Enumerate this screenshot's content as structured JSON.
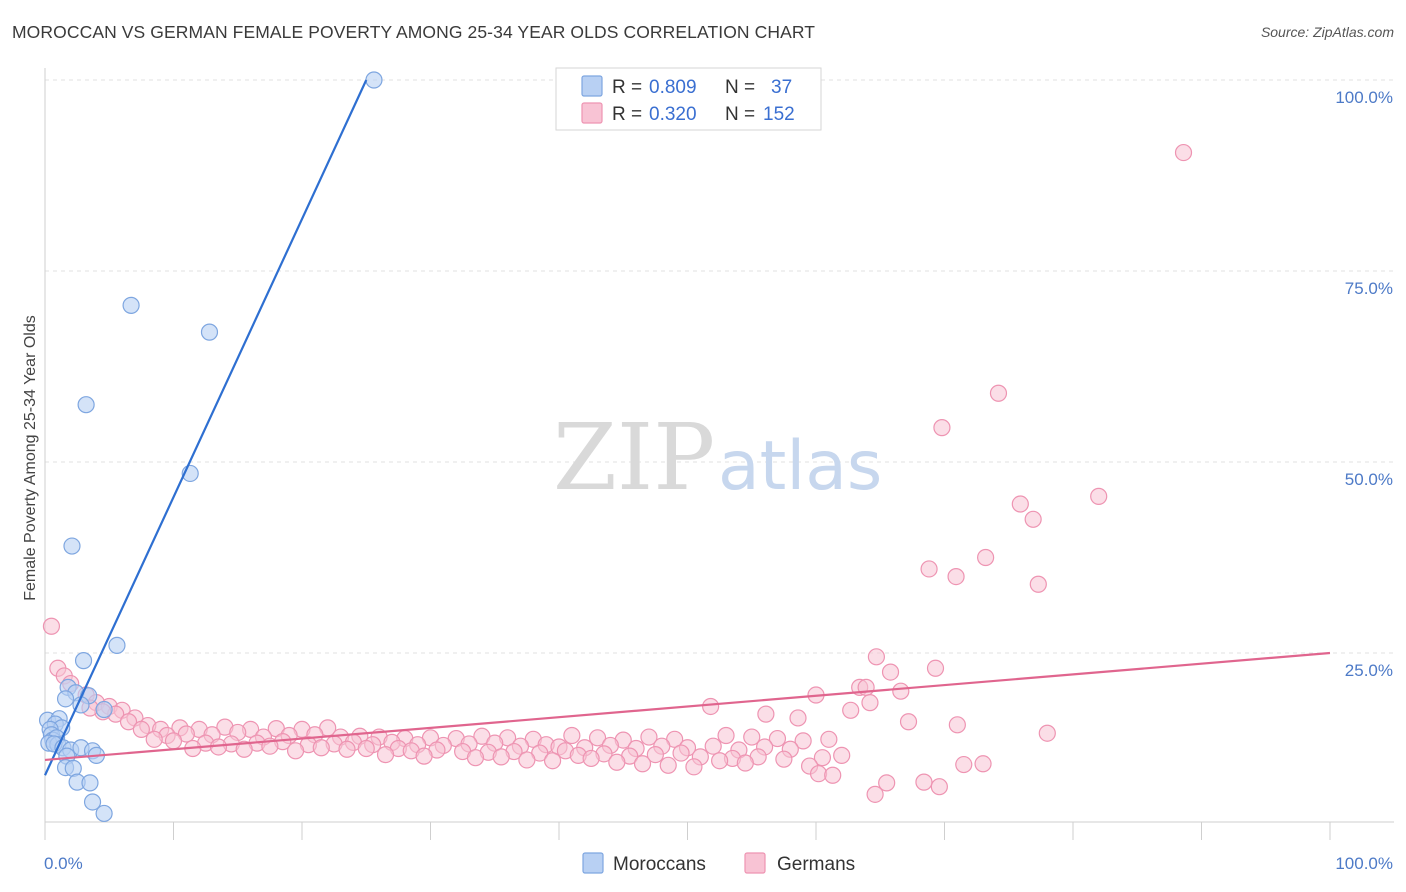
{
  "header": {
    "title": "MOROCCAN VS GERMAN FEMALE POVERTY AMONG 25-34 YEAR OLDS CORRELATION CHART",
    "source": "Source: ZipAtlas.com"
  },
  "watermark": {
    "part1": "ZIP",
    "part2": "atlas"
  },
  "legend": {
    "r_label": "R =",
    "n_label": "N =",
    "rows": [
      {
        "r": "0.809",
        "n": "37"
      },
      {
        "r": "0.320",
        "n": "152"
      }
    ]
  },
  "colors": {
    "blue_fill": "#b8d0f3",
    "blue_stroke": "#7ea6e0",
    "blue_line": "#2e6fd1",
    "pink_fill": "#f8c3d4",
    "pink_stroke": "#ee94b2",
    "pink_line": "#e0658e",
    "grid": "#e2e2e2",
    "axis_tick_text": "#4d7ac7"
  },
  "chart_data": {
    "type": "scatter",
    "title": "MOROCCAN VS GERMAN FEMALE POVERTY AMONG 25-34 YEAR OLDS CORRELATION CHART",
    "xlabel": "",
    "ylabel": "Female Poverty Among 25-34 Year Olds",
    "xlim": [
      0,
      100
    ],
    "ylim": [
      0,
      103
    ],
    "x_tick_labels": [
      "0.0%",
      "100.0%"
    ],
    "y_ticks": [
      25,
      50,
      75,
      100
    ],
    "y_tick_labels": [
      "25.0%",
      "50.0%",
      "75.0%",
      "100.0%"
    ],
    "grid": true,
    "legend_position": "bottom-center",
    "series": [
      {
        "name": "Moroccans",
        "color": "#b8d0f3",
        "stats": {
          "R": 0.809,
          "N": 37
        },
        "trend": {
          "x": [
            0.0,
            25.0
          ],
          "y": [
            9.0,
            100.0
          ]
        },
        "points": [
          [
            25.6,
            100.0
          ],
          [
            6.7,
            70.5
          ],
          [
            12.8,
            67.0
          ],
          [
            3.2,
            57.5
          ],
          [
            11.3,
            48.5
          ],
          [
            2.1,
            39.0
          ],
          [
            5.6,
            26.0
          ],
          [
            3.0,
            24.0
          ],
          [
            1.8,
            20.5
          ],
          [
            2.4,
            19.8
          ],
          [
            3.4,
            19.4
          ],
          [
            4.6,
            17.6
          ],
          [
            2.8,
            18.2
          ],
          [
            1.6,
            19.0
          ],
          [
            0.2,
            16.2
          ],
          [
            1.1,
            16.4
          ],
          [
            0.8,
            15.7
          ],
          [
            1.3,
            15.2
          ],
          [
            0.4,
            15.0
          ],
          [
            0.5,
            14.3
          ],
          [
            0.6,
            13.6
          ],
          [
            0.9,
            13.9
          ],
          [
            0.3,
            13.2
          ],
          [
            1.0,
            13.0
          ],
          [
            0.7,
            13.1
          ],
          [
            1.4,
            12.6
          ],
          [
            2.0,
            12.3
          ],
          [
            2.8,
            12.6
          ],
          [
            3.7,
            12.2
          ],
          [
            1.7,
            11.5
          ],
          [
            4.0,
            11.6
          ],
          [
            1.6,
            10.0
          ],
          [
            2.2,
            9.9
          ],
          [
            2.5,
            8.1
          ],
          [
            3.5,
            8.0
          ],
          [
            3.7,
            5.5
          ],
          [
            4.6,
            4.0
          ]
        ]
      },
      {
        "name": "Germans",
        "color": "#f8c3d4",
        "stats": {
          "R": 0.32,
          "N": 152
        },
        "trend": {
          "x": [
            0.0,
            100.0
          ],
          "y": [
            11.0,
            25.0
          ]
        },
        "points": [
          [
            88.6,
            90.5
          ],
          [
            74.2,
            59.0
          ],
          [
            69.8,
            54.5
          ],
          [
            82.0,
            45.5
          ],
          [
            75.9,
            44.5
          ],
          [
            76.9,
            42.5
          ],
          [
            73.2,
            37.5
          ],
          [
            68.8,
            36.0
          ],
          [
            70.9,
            35.0
          ],
          [
            77.3,
            34.0
          ],
          [
            0.5,
            28.5
          ],
          [
            64.7,
            24.5
          ],
          [
            65.8,
            22.5
          ],
          [
            69.3,
            23.0
          ],
          [
            1.0,
            23.0
          ],
          [
            1.5,
            22.0
          ],
          [
            2.0,
            21.0
          ],
          [
            63.4,
            20.5
          ],
          [
            63.9,
            20.5
          ],
          [
            66.6,
            20.0
          ],
          [
            60.0,
            19.5
          ],
          [
            3.2,
            19.5
          ],
          [
            64.2,
            18.5
          ],
          [
            4.0,
            18.5
          ],
          [
            5.0,
            18.0
          ],
          [
            6.0,
            17.5
          ],
          [
            5.5,
            17.0
          ],
          [
            4.5,
            17.3
          ],
          [
            3.5,
            17.8
          ],
          [
            62.7,
            17.5
          ],
          [
            51.8,
            18.0
          ],
          [
            56.1,
            17.0
          ],
          [
            58.6,
            16.5
          ],
          [
            67.2,
            16.0
          ],
          [
            7.0,
            16.5
          ],
          [
            6.5,
            16.0
          ],
          [
            8.0,
            15.5
          ],
          [
            7.5,
            15.0
          ],
          [
            9.0,
            15.0
          ],
          [
            10.5,
            15.2
          ],
          [
            12.0,
            15.0
          ],
          [
            14.0,
            15.3
          ],
          [
            16.0,
            15.0
          ],
          [
            18.0,
            15.1
          ],
          [
            20.0,
            15.0
          ],
          [
            22.0,
            15.2
          ],
          [
            9.5,
            14.2
          ],
          [
            11.0,
            14.4
          ],
          [
            13.0,
            14.3
          ],
          [
            15.0,
            14.6
          ],
          [
            17.0,
            14.0
          ],
          [
            19.0,
            14.2
          ],
          [
            21.0,
            14.3
          ],
          [
            23.0,
            14.0
          ],
          [
            24.5,
            14.1
          ],
          [
            26.0,
            14.0
          ],
          [
            28.0,
            13.8
          ],
          [
            30.0,
            13.9
          ],
          [
            32.0,
            13.8
          ],
          [
            34.0,
            14.1
          ],
          [
            36.0,
            13.9
          ],
          [
            38.0,
            13.7
          ],
          [
            41.0,
            14.2
          ],
          [
            43.0,
            13.9
          ],
          [
            45.0,
            13.6
          ],
          [
            47.0,
            14.0
          ],
          [
            49.0,
            13.7
          ],
          [
            53.0,
            14.2
          ],
          [
            55.0,
            14.0
          ],
          [
            57.0,
            13.8
          ],
          [
            59.0,
            13.5
          ],
          [
            61.0,
            13.7
          ],
          [
            71.0,
            15.6
          ],
          [
            78.0,
            14.5
          ],
          [
            8.5,
            13.7
          ],
          [
            10.0,
            13.5
          ],
          [
            12.5,
            13.2
          ],
          [
            14.5,
            13.1
          ],
          [
            16.5,
            13.2
          ],
          [
            18.5,
            13.4
          ],
          [
            20.5,
            13.0
          ],
          [
            22.5,
            13.1
          ],
          [
            24.0,
            13.3
          ],
          [
            25.5,
            13.0
          ],
          [
            27.0,
            13.3
          ],
          [
            29.0,
            13.0
          ],
          [
            31.0,
            12.9
          ],
          [
            33.0,
            13.1
          ],
          [
            35.0,
            13.2
          ],
          [
            37.0,
            12.8
          ],
          [
            39.0,
            13.0
          ],
          [
            40.0,
            12.7
          ],
          [
            42.0,
            12.6
          ],
          [
            44.0,
            12.9
          ],
          [
            46.0,
            12.5
          ],
          [
            48.0,
            12.8
          ],
          [
            50.0,
            12.6
          ],
          [
            52.0,
            12.8
          ],
          [
            54.0,
            12.3
          ],
          [
            56.0,
            12.7
          ],
          [
            58.0,
            12.4
          ],
          [
            11.5,
            12.5
          ],
          [
            13.5,
            12.7
          ],
          [
            15.5,
            12.4
          ],
          [
            17.5,
            12.8
          ],
          [
            19.5,
            12.2
          ],
          [
            21.5,
            12.6
          ],
          [
            23.5,
            12.4
          ],
          [
            25.0,
            12.5
          ],
          [
            27.5,
            12.5
          ],
          [
            28.5,
            12.2
          ],
          [
            30.5,
            12.3
          ],
          [
            32.5,
            12.1
          ],
          [
            34.5,
            12.0
          ],
          [
            36.5,
            12.1
          ],
          [
            38.5,
            11.9
          ],
          [
            40.5,
            12.2
          ],
          [
            41.5,
            11.6
          ],
          [
            43.5,
            11.8
          ],
          [
            45.5,
            11.5
          ],
          [
            47.5,
            11.7
          ],
          [
            49.5,
            11.9
          ],
          [
            51.0,
            11.4
          ],
          [
            53.5,
            11.2
          ],
          [
            55.5,
            11.4
          ],
          [
            57.5,
            11.1
          ],
          [
            60.5,
            11.3
          ],
          [
            62.0,
            11.6
          ],
          [
            26.5,
            11.7
          ],
          [
            29.5,
            11.5
          ],
          [
            33.5,
            11.3
          ],
          [
            35.5,
            11.4
          ],
          [
            37.5,
            11.0
          ],
          [
            39.5,
            10.9
          ],
          [
            42.5,
            11.2
          ],
          [
            44.5,
            10.7
          ],
          [
            46.5,
            10.5
          ],
          [
            48.5,
            10.3
          ],
          [
            50.5,
            10.1
          ],
          [
            52.5,
            10.9
          ],
          [
            54.5,
            10.6
          ],
          [
            59.5,
            10.2
          ],
          [
            71.5,
            10.4
          ],
          [
            73.0,
            10.5
          ],
          [
            60.2,
            9.2
          ],
          [
            61.3,
            9.0
          ],
          [
            65.5,
            8.0
          ],
          [
            68.4,
            8.1
          ],
          [
            69.6,
            7.5
          ],
          [
            64.6,
            6.5
          ]
        ]
      }
    ]
  },
  "bottom_legend": [
    "Moroccans",
    "Germans"
  ]
}
